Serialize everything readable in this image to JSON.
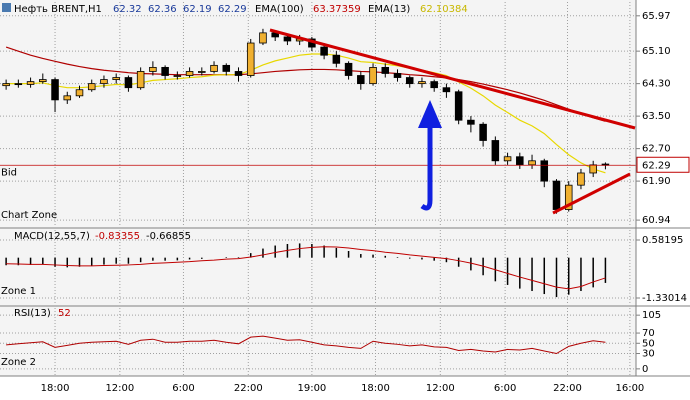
{
  "chart_data": [
    {
      "type": "candlestick",
      "title": "Нефть BRENT,H1",
      "open": [
        64.25,
        64.3,
        64.28,
        64.35,
        64.4,
        63.9,
        64.0,
        64.15,
        64.3,
        64.4,
        64.45,
        64.2,
        64.6,
        64.7,
        64.5,
        64.5,
        64.6,
        64.6,
        64.75,
        64.6,
        64.5,
        65.3,
        65.55,
        65.45,
        65.35,
        65.4,
        65.2,
        65.0,
        64.8,
        64.5,
        64.3,
        64.7,
        64.55,
        64.45,
        64.3,
        64.35,
        64.2,
        64.1,
        63.4,
        63.3,
        62.9,
        62.4,
        62.5,
        62.3,
        62.4,
        61.9,
        61.2,
        61.8,
        62.1,
        62.32
      ],
      "high": [
        64.4,
        64.4,
        64.45,
        64.55,
        64.45,
        64.1,
        64.25,
        64.4,
        64.5,
        64.55,
        64.5,
        64.7,
        64.85,
        64.75,
        64.6,
        64.7,
        64.7,
        64.85,
        64.8,
        64.7,
        65.4,
        65.65,
        65.6,
        65.5,
        65.5,
        65.45,
        65.3,
        65.1,
        64.85,
        64.6,
        64.8,
        64.8,
        64.65,
        64.5,
        64.45,
        64.4,
        64.3,
        64.15,
        63.5,
        63.35,
        63.0,
        62.6,
        62.6,
        62.55,
        62.45,
        61.95,
        61.9,
        62.2,
        62.4,
        62.36
      ],
      "low": [
        64.15,
        64.2,
        64.2,
        64.3,
        63.6,
        63.8,
        63.95,
        64.1,
        64.2,
        64.3,
        64.1,
        64.15,
        64.5,
        64.4,
        64.4,
        64.45,
        64.5,
        64.55,
        64.5,
        64.35,
        64.45,
        65.25,
        65.35,
        65.25,
        65.25,
        65.1,
        64.9,
        64.7,
        64.4,
        64.15,
        64.25,
        64.45,
        64.35,
        64.2,
        64.2,
        64.1,
        63.95,
        63.3,
        63.1,
        62.75,
        62.3,
        62.3,
        62.2,
        62.2,
        61.75,
        61.1,
        61.15,
        61.7,
        62.0,
        62.19
      ],
      "close": [
        64.3,
        64.28,
        64.35,
        64.4,
        63.9,
        64.0,
        64.15,
        64.3,
        64.4,
        64.45,
        64.2,
        64.6,
        64.7,
        64.5,
        64.5,
        64.6,
        64.6,
        64.75,
        64.6,
        64.5,
        65.3,
        65.55,
        65.45,
        65.35,
        65.4,
        65.2,
        65.0,
        64.8,
        64.5,
        64.3,
        64.7,
        64.55,
        64.45,
        64.3,
        64.35,
        64.2,
        64.1,
        63.4,
        63.3,
        62.9,
        62.4,
        62.5,
        62.3,
        62.4,
        61.9,
        61.2,
        61.8,
        62.1,
        62.3,
        62.29
      ],
      "up_color": "#f0b030",
      "down_color": "#000000",
      "series": [
        {
          "name": "EMA(100)",
          "color": "#b00000",
          "values": [
            65.2,
            65.1,
            65.0,
            64.92,
            64.85,
            64.78,
            64.72,
            64.67,
            64.63,
            64.6,
            64.57,
            64.55,
            64.54,
            64.53,
            64.52,
            64.52,
            64.52,
            64.52,
            64.52,
            64.52,
            64.54,
            64.57,
            64.6,
            64.62,
            64.64,
            64.65,
            64.65,
            64.64,
            64.62,
            64.6,
            64.59,
            64.57,
            64.55,
            64.52,
            64.5,
            64.47,
            64.44,
            64.4,
            64.35,
            64.29,
            64.22,
            64.15,
            64.07,
            63.98,
            63.89,
            63.78,
            63.67,
            63.56,
            63.46,
            63.37359
          ]
        },
        {
          "name": "EMA(13)",
          "color": "#e8d800",
          "values": [
            64.3,
            64.3,
            64.3,
            64.32,
            64.25,
            64.2,
            64.2,
            64.22,
            64.25,
            64.28,
            64.27,
            64.32,
            64.38,
            64.4,
            64.42,
            64.45,
            64.47,
            64.51,
            64.52,
            64.52,
            64.63,
            64.76,
            64.86,
            64.93,
            65.0,
            65.03,
            65.03,
            65.0,
            64.93,
            64.84,
            64.82,
            64.78,
            64.74,
            64.68,
            64.63,
            64.57,
            64.5,
            64.34,
            64.19,
            64.0,
            63.77,
            63.59,
            63.4,
            63.26,
            63.07,
            62.8,
            62.55,
            62.35,
            62.2,
            62.10384
          ]
        }
      ],
      "bid_label": "Bid",
      "bid_color": "#c00000",
      "zone_label": "Chart Zone",
      "ylim": [
        60.77,
        66.31
      ],
      "yticks": [
        65.97,
        {
          "value": 65.1,
          "label": "65.10"
        },
        {
          "value": 64.3,
          "label": "64.30"
        },
        {
          "value": 63.5,
          "label": "63.50"
        },
        {
          "value": 62.7,
          "label": "62.70"
        },
        {
          "value": 61.9,
          "label": "61.90"
        },
        60.94
      ],
      "xlim": [
        0,
        52
      ],
      "xticks": [
        {
          "value": 4.0,
          "label": "18:00"
        },
        {
          "value": 9.3,
          "label": "12:00"
        },
        {
          "value": 14.5,
          "label": "6:00"
        },
        {
          "value": 19.8,
          "label": "22:00"
        },
        {
          "value": 25.0,
          "label": "19:00"
        },
        {
          "value": 30.2,
          "label": "18:00"
        },
        {
          "value": 35.5,
          "label": "12:00"
        },
        {
          "value": 40.8,
          "label": "6:00"
        },
        {
          "value": 45.9,
          "label": "22:00"
        },
        {
          "value": 51.0,
          "label": "16:00"
        }
      ],
      "grid": true
    },
    {
      "type": "macd",
      "title": "MACD(12,55,7)",
      "histogram": {
        "color": "#000000",
        "values": [
          -0.25,
          -0.25,
          -0.24,
          -0.22,
          -0.3,
          -0.32,
          -0.3,
          -0.27,
          -0.23,
          -0.2,
          -0.2,
          -0.15,
          -0.1,
          -0.1,
          -0.09,
          -0.06,
          -0.04,
          0.0,
          0.02,
          0.02,
          0.15,
          0.3,
          0.4,
          0.45,
          0.47,
          0.45,
          0.4,
          0.32,
          0.22,
          0.12,
          0.1,
          0.06,
          0.02,
          -0.03,
          -0.06,
          -0.1,
          -0.15,
          -0.3,
          -0.42,
          -0.58,
          -0.78,
          -0.9,
          -1.02,
          -1.1,
          -1.2,
          -1.3,
          -1.22,
          -1.1,
          -0.98,
          -0.83355
        ]
      },
      "signal": {
        "color": "#c00000",
        "values": [
          -0.2,
          -0.21,
          -0.22,
          -0.22,
          -0.24,
          -0.26,
          -0.27,
          -0.27,
          -0.26,
          -0.25,
          -0.24,
          -0.22,
          -0.19,
          -0.17,
          -0.15,
          -0.13,
          -0.1,
          -0.08,
          -0.05,
          -0.03,
          0.02,
          0.09,
          0.17,
          0.24,
          0.3,
          0.34,
          0.36,
          0.35,
          0.32,
          0.27,
          0.23,
          0.18,
          0.14,
          0.09,
          0.05,
          0.01,
          -0.03,
          -0.1,
          -0.18,
          -0.28,
          -0.4,
          -0.52,
          -0.64,
          -0.75,
          -0.86,
          -0.97,
          -1.03,
          -0.95,
          -0.8,
          -0.66855
        ]
      },
      "zone_label": "Zone 1",
      "ylim": [
        -1.528,
        0.912
      ],
      "yticks": [
        0.58195,
        -1.33014
      ]
    },
    {
      "type": "line",
      "title": "RSI(13)",
      "color": "#b00000",
      "values": [
        47,
        49,
        51,
        53,
        42,
        46,
        50,
        52,
        53,
        54,
        48,
        56,
        58,
        52,
        52,
        54,
        54,
        56,
        52,
        49,
        62,
        64,
        60,
        56,
        57,
        52,
        47,
        45,
        42,
        40,
        54,
        50,
        48,
        45,
        47,
        43,
        42,
        36,
        38,
        35,
        33,
        38,
        37,
        40,
        35,
        30,
        44,
        50,
        55,
        52
      ],
      "zone_label": "Zone 2",
      "ylim": [
        -12,
        119
      ],
      "yticks": [
        105,
        70,
        50,
        30,
        0
      ]
    }
  ]
}
